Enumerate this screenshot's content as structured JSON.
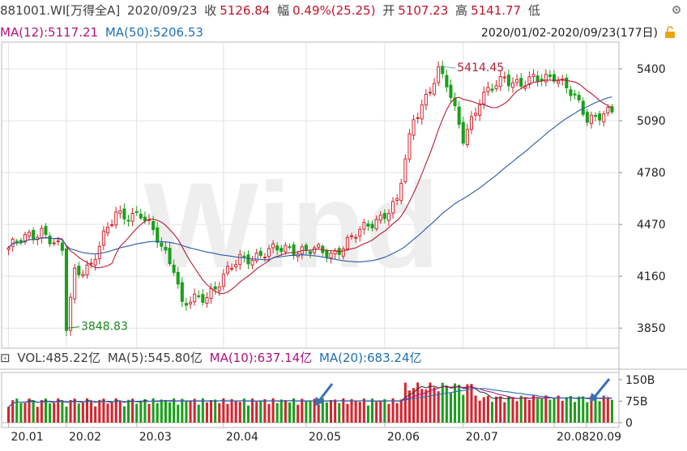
{
  "header": {
    "code": "881001.WI[万得全A]",
    "date": "2020/09/23",
    "close_label": "收",
    "close_value": "5126.84",
    "change_label": "幅",
    "change_value": "0.49%(25.25)",
    "open_label": "开",
    "open_value": "5107.23",
    "high_label": "高",
    "high_value": "5141.77",
    "low_label": "低"
  },
  "ma_line": {
    "ma12": "MA(12):5117.21",
    "ma50": "MA(50):5206.53",
    "range": "2020/01/02-2020/09/23(177日)"
  },
  "volume_line": {
    "vol": "VOL:485.22亿",
    "ma5": "MA(5):545.80亿",
    "ma10": "MA(10):637.14亿",
    "ma20": "MA(20):683.24亿"
  },
  "colors": {
    "up": "#d4252e",
    "down": "#1aa01a",
    "ma12": "#b51c36",
    "ma50": "#2a5aa8",
    "grid": "#e2e2e2",
    "arrow": "#3b6fb5"
  },
  "chart_data": {
    "type": "candlestick",
    "xlabel": "",
    "ylabel": "",
    "x_ticks": [
      "20.01",
      "20.02",
      "20.03",
      "20.04",
      "20.05",
      "20.06",
      "20.07",
      "20.08",
      "20.09"
    ],
    "price_ticks": [
      5400,
      5090,
      4780,
      4470,
      4160,
      3850
    ],
    "price_range": [
      3730,
      5560
    ],
    "volume_ticks": [
      "150B",
      "75B",
      "0"
    ],
    "volume_range": [
      0,
      175
    ],
    "annotations": [
      {
        "text": "5414.45",
        "index": 105,
        "price": 5414.45
      },
      {
        "text": "3848.83",
        "index": 14,
        "price": 3848.83
      }
    ],
    "ohlc_points": [
      [
        0,
        4330
      ],
      [
        8,
        4440
      ],
      [
        13,
        4300
      ],
      [
        14,
        3849
      ],
      [
        16,
        4190
      ],
      [
        20,
        4230
      ],
      [
        26,
        4540
      ],
      [
        32,
        4520
      ],
      [
        36,
        4390
      ],
      [
        40,
        4220
      ],
      [
        42,
        3980
      ],
      [
        48,
        4050
      ],
      [
        56,
        4260
      ],
      [
        62,
        4300
      ],
      [
        68,
        4330
      ],
      [
        74,
        4310
      ],
      [
        78,
        4290
      ],
      [
        82,
        4370
      ],
      [
        86,
        4440
      ],
      [
        90,
        4520
      ],
      [
        94,
        4600
      ],
      [
        98,
        5100
      ],
      [
        104,
        5380
      ],
      [
        106,
        5300
      ],
      [
        110,
        5000
      ],
      [
        114,
        5200
      ],
      [
        120,
        5360
      ],
      [
        124,
        5300
      ],
      [
        128,
        5340
      ],
      [
        132,
        5370
      ],
      [
        136,
        5250
      ],
      [
        140,
        5110
      ],
      [
        144,
        5140
      ],
      [
        146,
        5127
      ]
    ],
    "series": [
      {
        "name": "MA(12)",
        "current": 5117.21
      },
      {
        "name": "MA(50)",
        "current": 5206.53
      },
      {
        "name": "VOL",
        "current": "485.22亿"
      },
      {
        "name": "MA(5)",
        "current": "545.80亿"
      },
      {
        "name": "MA(10)",
        "current": "637.14亿"
      },
      {
        "name": "MA(20)",
        "current": "683.24亿"
      }
    ]
  }
}
